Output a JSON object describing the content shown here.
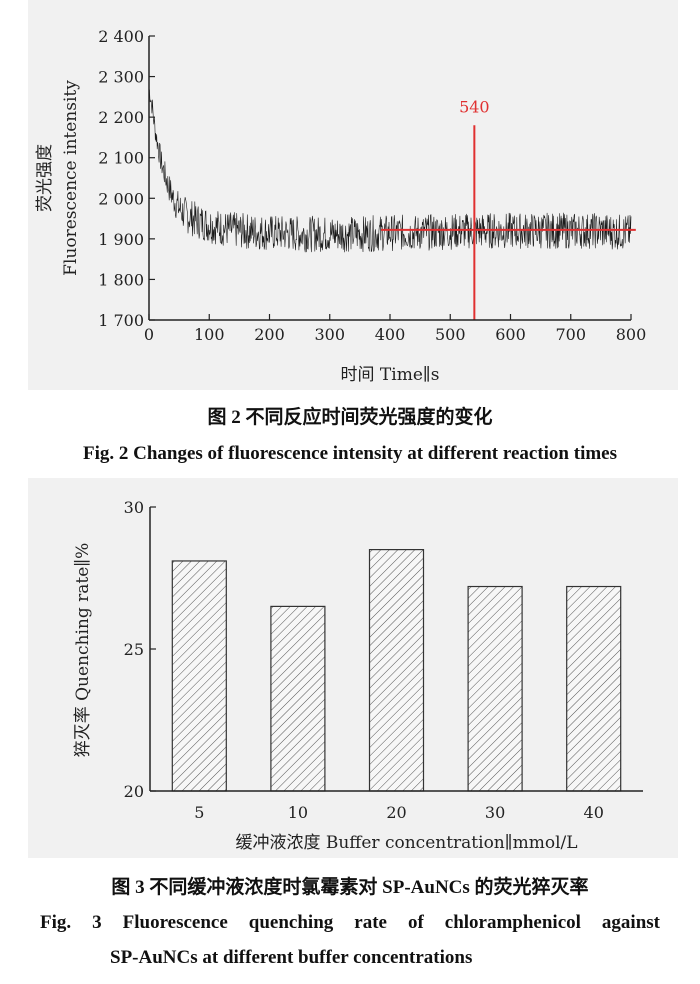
{
  "figures": [
    {
      "caption_cn": "图 2    不同反应时间荧光强度的变化",
      "caption_en": "Fig. 2    Changes of fluorescence intensity at different reaction times"
    },
    {
      "caption_cn": "图 3    不同缓冲液浓度时氯霉素对 SP-AuNCs 的荧光猝灭率",
      "caption_en_line1": "Fig. 3    Fluorescence quenching rate of chloramphenicol against",
      "caption_en_line2": "SP-AuNCs at different buffer concentrations"
    }
  ],
  "chart_data": [
    {
      "type": "line",
      "xlabel": "时间 Time∥s",
      "ylabel_cn": "荧光强度",
      "ylabel_en": "Fluorescence intensity",
      "xlim": [
        0,
        800
      ],
      "ylim": [
        1700,
        2400
      ],
      "x_ticks": [
        "0",
        "100",
        "200",
        "300",
        "400",
        "500",
        "600",
        "700",
        "800"
      ],
      "y_ticks": [
        "1 700",
        "1 800",
        "1 900",
        "2 000",
        "2 100",
        "2 200",
        "2 300",
        "2 400"
      ],
      "series": [
        {
          "color": "#1a1a1a",
          "x": [
            0,
            5,
            10,
            20,
            30,
            40,
            50,
            60,
            80,
            100,
            125,
            150,
            200,
            250,
            300,
            350,
            400,
            450,
            500,
            540,
            600,
            650,
            700,
            750,
            800
          ],
          "y": [
            2270,
            2230,
            2170,
            2090,
            2040,
            2000,
            1975,
            1960,
            1945,
            1935,
            1925,
            1920,
            1915,
            1912,
            1912,
            1912,
            1915,
            1915,
            1918,
            1920,
            1920,
            1920,
            1920,
            1920,
            1915
          ],
          "noise_amplitude": 45
        }
      ],
      "annotation": {
        "label": "540",
        "color": "#e03030",
        "vline_x": 540,
        "vline_y_range": [
          1700,
          2180
        ],
        "hline_y": 1922,
        "hline_x_range": [
          385,
          808
        ]
      }
    },
    {
      "type": "bar",
      "xlabel": "缓冲液浓度 Buffer concentration∥mmol/L",
      "ylabel": "猝灭率 Quenching rate∥%",
      "categories": [
        "5",
        "10",
        "20",
        "30",
        "40"
      ],
      "values": [
        28.1,
        26.5,
        28.5,
        27.2,
        27.2
      ],
      "ylim": [
        20,
        30
      ],
      "y_ticks": [
        "20",
        "25",
        "30"
      ],
      "bar_fill": "hatched"
    }
  ]
}
